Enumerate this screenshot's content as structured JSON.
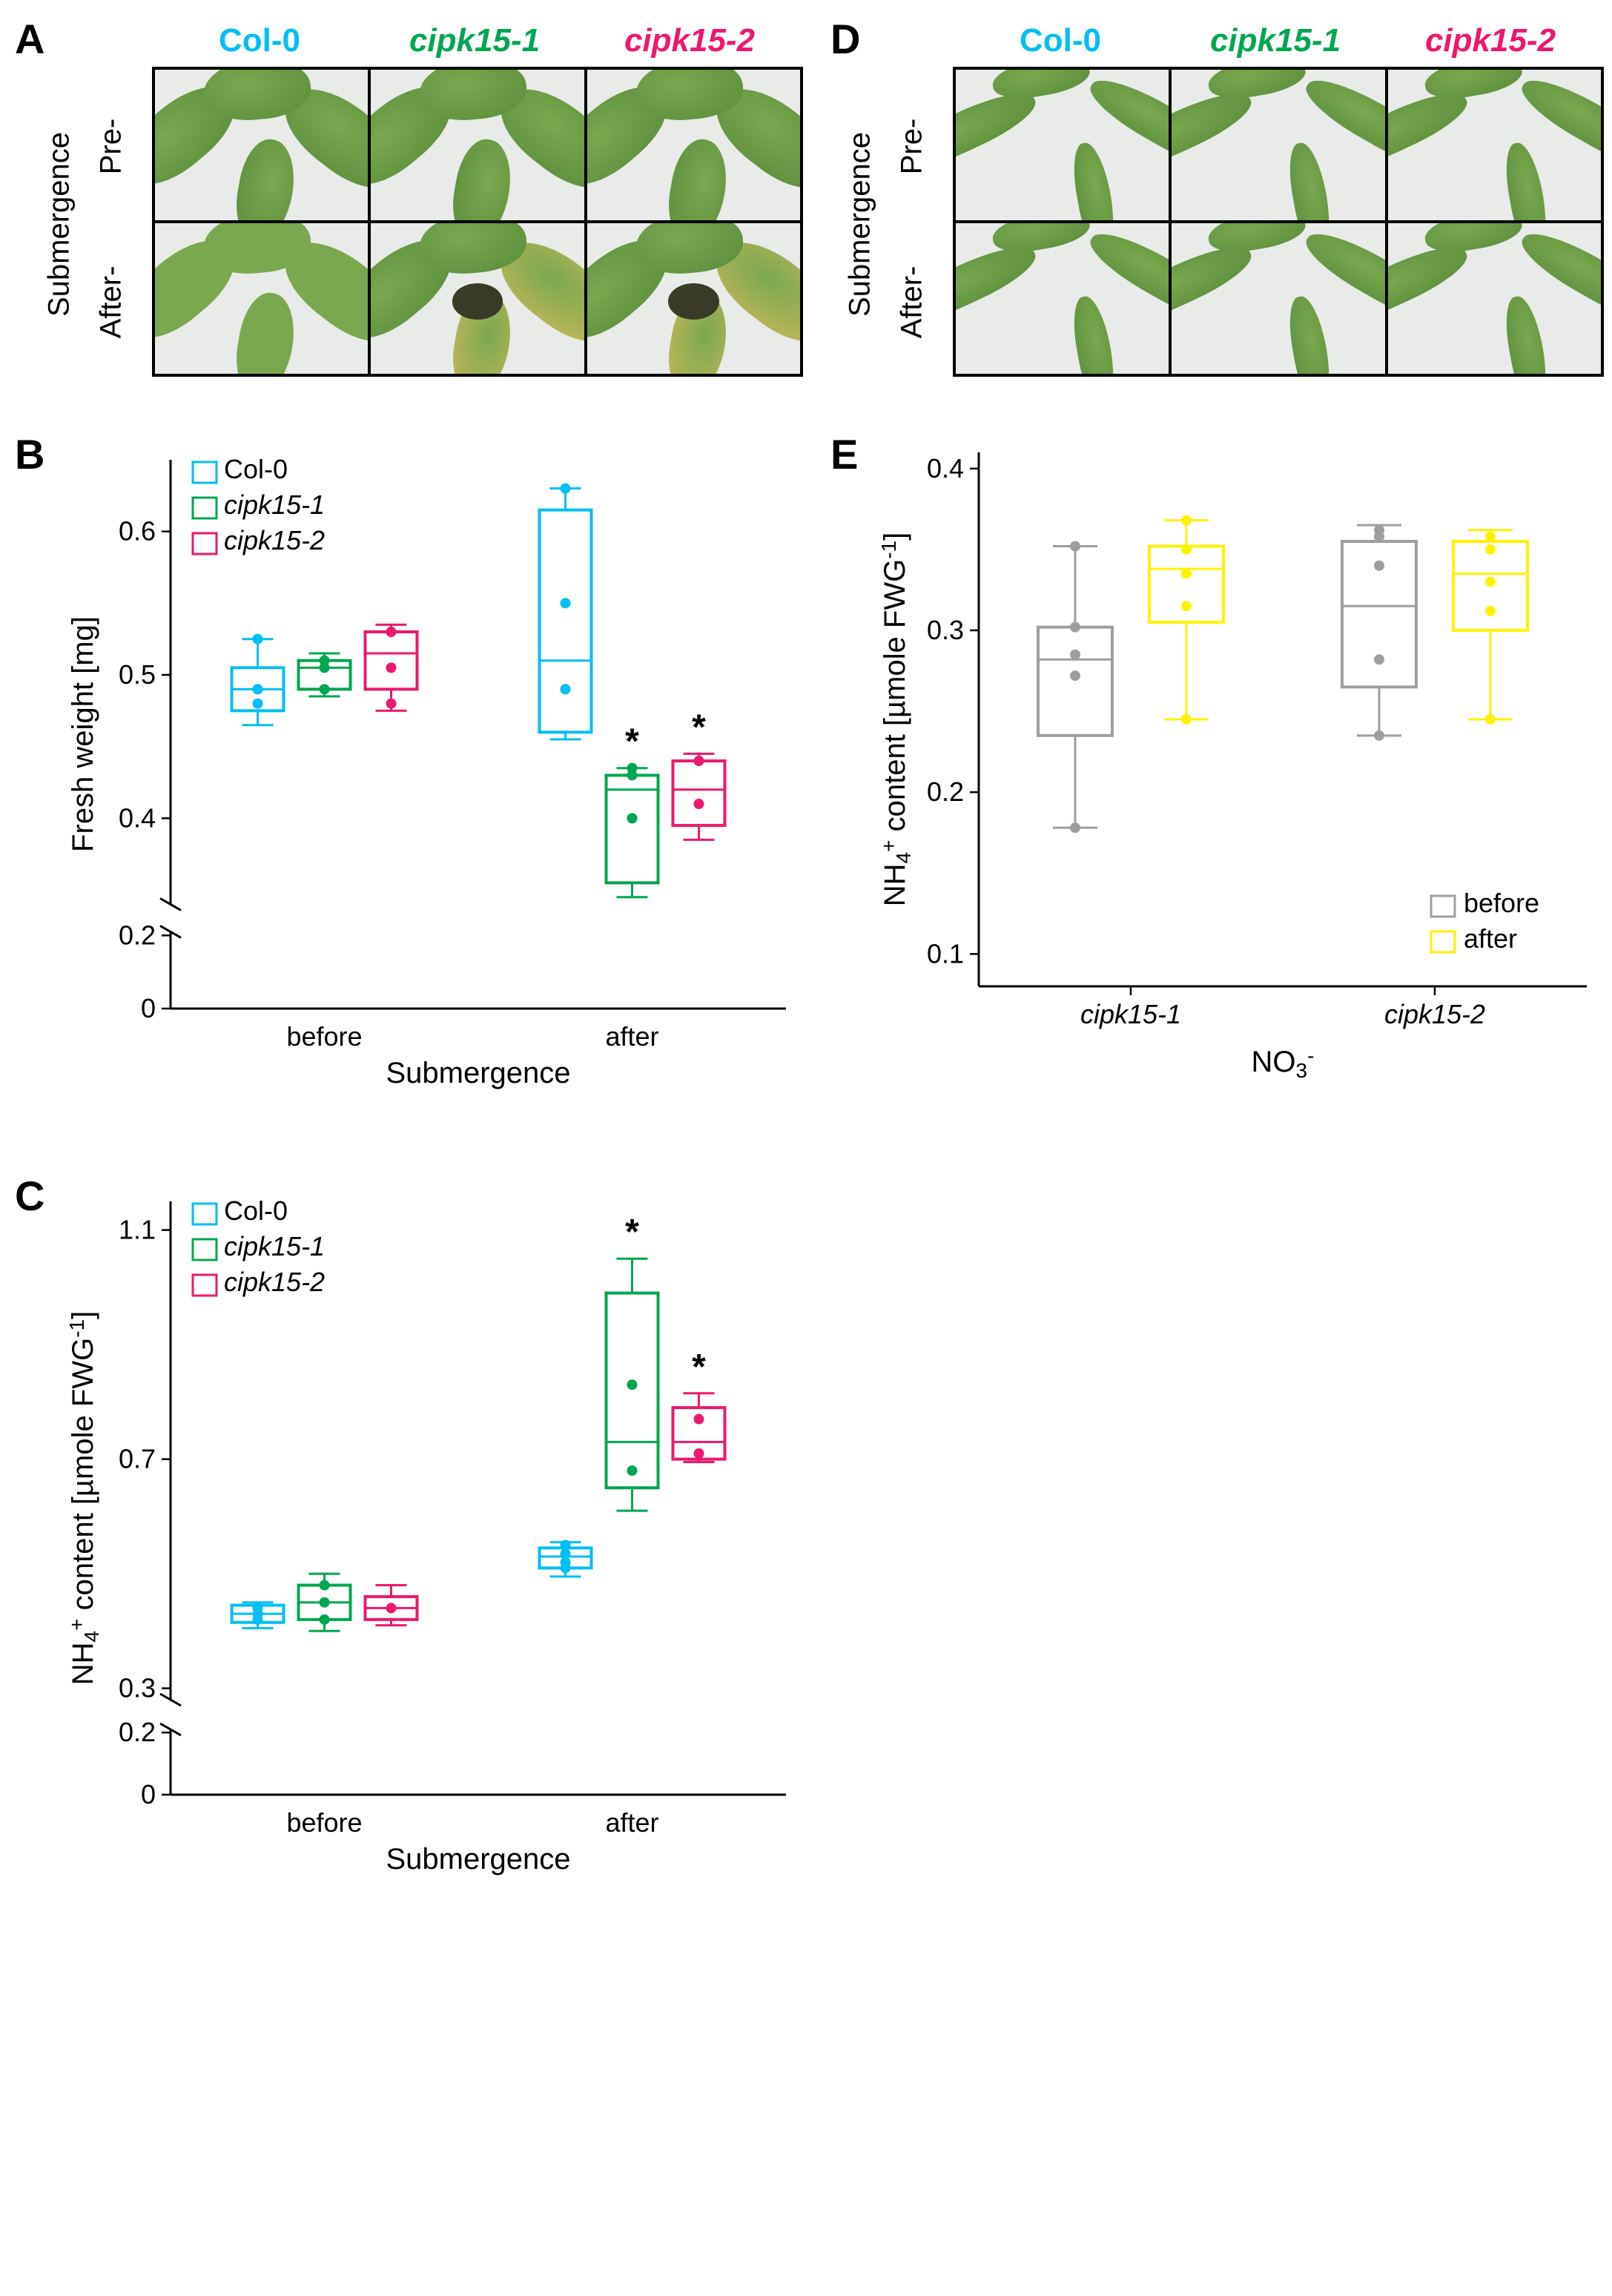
{
  "colors": {
    "col0": "#00bff2",
    "cipk15_1": "#00a651",
    "cipk15_2": "#ed186f",
    "before": "#9e9e9e",
    "after": "#fff200",
    "black": "#000000",
    "healthy_leaf": "#5a8c3a",
    "healthy_leaf_light": "#7ba84f",
    "chlorotic": "#c9b85a",
    "necrotic": "#3a3a28",
    "photo_bg": "#e8ebe8"
  },
  "panels": {
    "A": "A",
    "B": "B",
    "C": "C",
    "D": "D",
    "E": "E"
  },
  "genotypes": {
    "col0": "Col-0",
    "cipk15_1": "cipk15-1",
    "cipk15_2": "cipk15-2"
  },
  "side_labels": {
    "submergence": "Submergence",
    "pre": "Pre-",
    "after": "After-"
  },
  "chartB": {
    "ylabel": "Fresh weight [mg]",
    "xlabel": "Submergence",
    "yticks": [
      0,
      0.2,
      0.4,
      0.5,
      0.6
    ],
    "break_low": 0.21,
    "break_high": 0.34,
    "xticks": [
      "before",
      "after"
    ],
    "legend": [
      "Col-0",
      "cipk15-1",
      "cipk15-2"
    ],
    "legend_colors": [
      "#00bff2",
      "#00a651",
      "#ed186f"
    ],
    "data": {
      "before": {
        "col0": {
          "min": 0.465,
          "q1": 0.475,
          "med": 0.49,
          "q3": 0.505,
          "max": 0.525,
          "pts": [
            0.48,
            0.49,
            0.49,
            0.525
          ]
        },
        "cipk15_1": {
          "min": 0.485,
          "q1": 0.49,
          "med": 0.505,
          "q3": 0.51,
          "max": 0.515,
          "pts": [
            0.49,
            0.505,
            0.51
          ]
        },
        "cipk15_2": {
          "min": 0.475,
          "q1": 0.49,
          "med": 0.515,
          "q3": 0.53,
          "max": 0.535,
          "pts": [
            0.48,
            0.505,
            0.53
          ]
        }
      },
      "after": {
        "col0": {
          "min": 0.455,
          "q1": 0.46,
          "med": 0.51,
          "q3": 0.615,
          "max": 0.63,
          "pts": [
            0.49,
            0.55,
            0.63
          ]
        },
        "cipk15_1": {
          "min": 0.345,
          "q1": 0.355,
          "med": 0.42,
          "q3": 0.43,
          "max": 0.435,
          "pts": [
            0.4,
            0.43,
            0.435
          ],
          "sig": "*"
        },
        "cipk15_2": {
          "min": 0.385,
          "q1": 0.395,
          "med": 0.42,
          "q3": 0.44,
          "max": 0.445,
          "pts": [
            0.41,
            0.44
          ],
          "sig": "*"
        }
      }
    }
  },
  "chartC": {
    "ylabel_html": "NH₄⁺ content [µmole FWG⁻¹]",
    "xlabel": "Submergence",
    "yticks": [
      0,
      0.2,
      0.3,
      0.7,
      1.1
    ],
    "break_low": 0.21,
    "break_high": 0.28,
    "xticks": [
      "before",
      "after"
    ],
    "legend": [
      "Col-0",
      "cipk15-1",
      "cipk15-2"
    ],
    "legend_colors": [
      "#00bff2",
      "#00a651",
      "#ed186f"
    ],
    "data": {
      "before": {
        "col0": {
          "min": 0.405,
          "q1": 0.415,
          "med": 0.43,
          "q3": 0.445,
          "max": 0.45,
          "pts": [
            0.42,
            0.43,
            0.44
          ]
        },
        "cipk15_1": {
          "min": 0.4,
          "q1": 0.42,
          "med": 0.45,
          "q3": 0.48,
          "max": 0.5,
          "pts": [
            0.42,
            0.45,
            0.48
          ]
        },
        "cipk15_2": {
          "min": 0.41,
          "q1": 0.42,
          "med": 0.44,
          "q3": 0.46,
          "max": 0.48,
          "pts": [
            0.44
          ]
        }
      },
      "after": {
        "col0": {
          "min": 0.495,
          "q1": 0.51,
          "med": 0.53,
          "q3": 0.545,
          "max": 0.555,
          "pts": [
            0.51,
            0.52,
            0.535,
            0.55
          ]
        },
        "cipk15_1": {
          "min": 0.61,
          "q1": 0.65,
          "med": 0.73,
          "q3": 0.99,
          "max": 1.05,
          "pts": [
            0.68,
            0.83
          ],
          "sig": "*"
        },
        "cipk15_2": {
          "min": 0.695,
          "q1": 0.7,
          "med": 0.73,
          "q3": 0.79,
          "max": 0.815,
          "pts": [
            0.71,
            0.77
          ],
          "sig": "*"
        }
      }
    }
  },
  "chartE": {
    "ylabel_html": "NH₄⁺ content [µmole FWG⁻¹]",
    "xlabel_html": "NO₃⁻",
    "yticks": [
      0.1,
      0.2,
      0.3,
      0.4
    ],
    "xticks": [
      "cipk15-1",
      "cipk15-2"
    ],
    "legend": [
      "before",
      "after"
    ],
    "legend_colors": [
      "#9e9e9e",
      "#fff200"
    ],
    "data": {
      "cipk15_1": {
        "before": {
          "min": 0.178,
          "q1": 0.235,
          "med": 0.282,
          "q3": 0.302,
          "max": 0.352,
          "pts": [
            0.178,
            0.272,
            0.285,
            0.302,
            0.352
          ]
        },
        "after": {
          "min": 0.245,
          "q1": 0.305,
          "med": 0.338,
          "q3": 0.352,
          "max": 0.368,
          "pts": [
            0.245,
            0.315,
            0.335,
            0.35,
            0.368
          ]
        }
      },
      "cipk15_2": {
        "before": {
          "min": 0.235,
          "q1": 0.265,
          "med": 0.315,
          "q3": 0.355,
          "max": 0.365,
          "pts": [
            0.235,
            0.282,
            0.34,
            0.358,
            0.362
          ]
        },
        "after": {
          "min": 0.245,
          "q1": 0.3,
          "med": 0.335,
          "q3": 0.355,
          "max": 0.362,
          "pts": [
            0.245,
            0.312,
            0.33,
            0.35,
            0.358
          ]
        }
      }
    }
  }
}
